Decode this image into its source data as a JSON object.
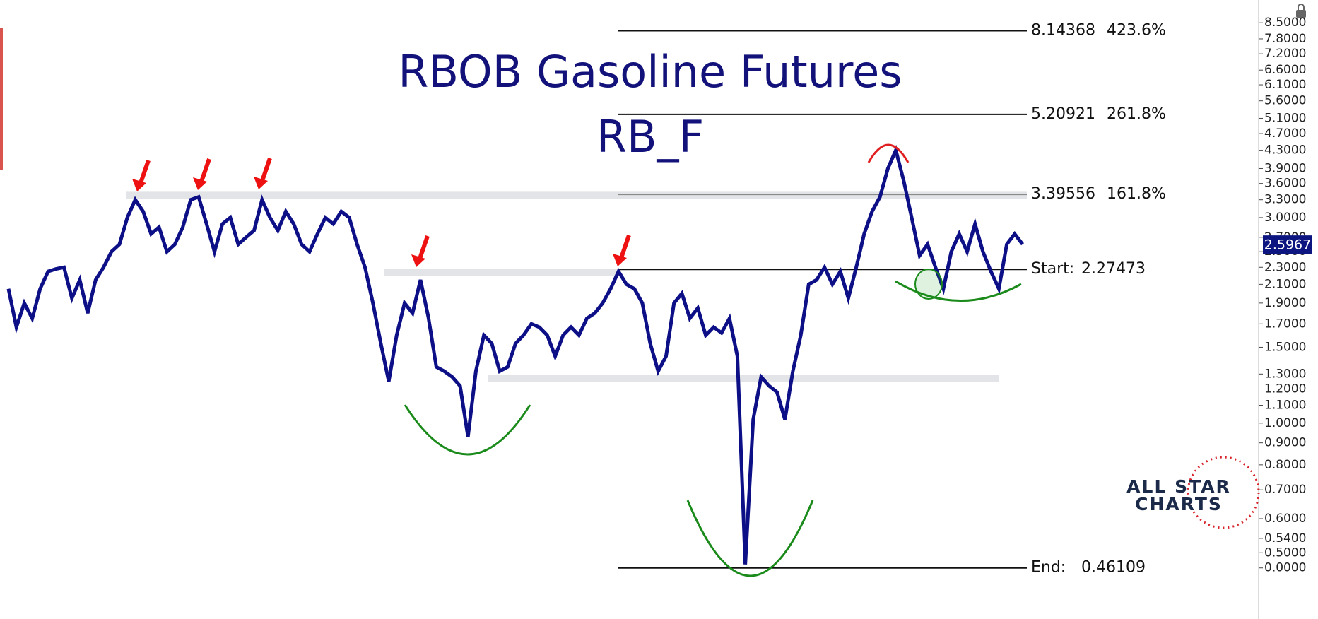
{
  "chart_data": {
    "type": "line",
    "title": "RBOB Gasoline Futures",
    "subtitle": "RB_F",
    "color": "#0c0f86",
    "log_scale": true,
    "ylim": [
      0.37,
      9.6
    ],
    "yticks": [
      {
        "value": 8.5,
        "label": "8.5000"
      },
      {
        "value": 7.8,
        "label": "7.8000"
      },
      {
        "value": 7.2,
        "label": "7.2000"
      },
      {
        "value": 6.6,
        "label": "6.6000"
      },
      {
        "value": 6.1,
        "label": "6.1000"
      },
      {
        "value": 5.6,
        "label": "5.6000"
      },
      {
        "value": 5.1,
        "label": "5.1000"
      },
      {
        "value": 4.7,
        "label": "4.7000"
      },
      {
        "value": 4.3,
        "label": "4.3000"
      },
      {
        "value": 3.9,
        "label": "3.9000"
      },
      {
        "value": 3.6,
        "label": "3.6000"
      },
      {
        "value": 3.3,
        "label": "3.3000"
      },
      {
        "value": 3.0,
        "label": "3.0000"
      },
      {
        "value": 2.7,
        "label": "2.7000"
      },
      {
        "value": 2.5,
        "label": "2.5000"
      },
      {
        "value": 2.3,
        "label": "2.3000"
      },
      {
        "value": 2.1,
        "label": "2.1000"
      },
      {
        "value": 1.9,
        "label": "1.9000"
      },
      {
        "value": 1.7,
        "label": "1.7000"
      },
      {
        "value": 1.5,
        "label": "1.5000"
      },
      {
        "value": 1.3,
        "label": "1.3000"
      },
      {
        "value": 1.2,
        "label": "1.2000"
      },
      {
        "value": 1.1,
        "label": "1.1000"
      },
      {
        "value": 1.0,
        "label": "1.0000"
      },
      {
        "value": 0.9,
        "label": "0.9000"
      },
      {
        "value": 0.8,
        "label": "0.8000"
      },
      {
        "value": 0.7,
        "label": "0.7000"
      },
      {
        "value": 0.6,
        "label": "0.6000"
      },
      {
        "value": 0.54,
        "label": "0.5400"
      },
      {
        "value": 0.5,
        "label": "0.5000"
      }
    ],
    "values": [
      2.05,
      1.67,
      1.9,
      1.75,
      2.05,
      2.25,
      2.28,
      2.3,
      1.95,
      2.15,
      1.8,
      2.15,
      2.3,
      2.5,
      2.6,
      3.0,
      3.3,
      3.1,
      2.75,
      2.85,
      2.5,
      2.6,
      2.85,
      3.3,
      3.35,
      2.9,
      2.5,
      2.9,
      3.0,
      2.6,
      2.7,
      2.8,
      3.3,
      3.0,
      2.8,
      3.1,
      2.9,
      2.6,
      2.5,
      2.75,
      3.0,
      2.9,
      3.1,
      3.0,
      2.6,
      2.3,
      1.9,
      1.53,
      1.25,
      1.6,
      1.9,
      1.8,
      2.15,
      1.76,
      1.35,
      1.32,
      1.28,
      1.22,
      0.93,
      1.32,
      1.6,
      1.53,
      1.32,
      1.35,
      1.53,
      1.6,
      1.7,
      1.67,
      1.6,
      1.43,
      1.6,
      1.67,
      1.6,
      1.75,
      1.8,
      1.9,
      2.05,
      2.25,
      2.1,
      2.05,
      1.9,
      1.53,
      1.32,
      1.43,
      1.9,
      2.0,
      1.75,
      1.85,
      1.6,
      1.67,
      1.62,
      1.75,
      1.43,
      0.47,
      1.02,
      1.28,
      1.22,
      1.18,
      1.02,
      1.32,
      1.6,
      2.1,
      2.15,
      2.3,
      2.1,
      2.25,
      1.95,
      2.3,
      2.75,
      3.1,
      3.35,
      3.9,
      4.3,
      3.65,
      3.0,
      2.45,
      2.6,
      2.3,
      2.05,
      2.5,
      2.75,
      2.5,
      2.9,
      2.5,
      2.25,
      2.05,
      2.6,
      2.75,
      2.6
    ],
    "last_price": 2.5967,
    "zones": [
      3.38,
      2.24,
      1.27
    ],
    "fib_levels": [
      {
        "value": 8.14368,
        "percent": "423.6%",
        "color": "#111111"
      },
      {
        "value": 5.20921,
        "percent": "261.8%",
        "color": "#111111"
      },
      {
        "value": 3.39556,
        "percent": "161.8%",
        "color": "#8a8a8a"
      },
      {
        "value": 2.27473,
        "name": "Start:",
        "color": "#111111"
      },
      {
        "value": 0.46109,
        "name": "End:",
        "color": "#111111",
        "axis_label": "0.0000"
      }
    ],
    "logo": [
      "ALL STAR",
      "CHARTS"
    ]
  }
}
